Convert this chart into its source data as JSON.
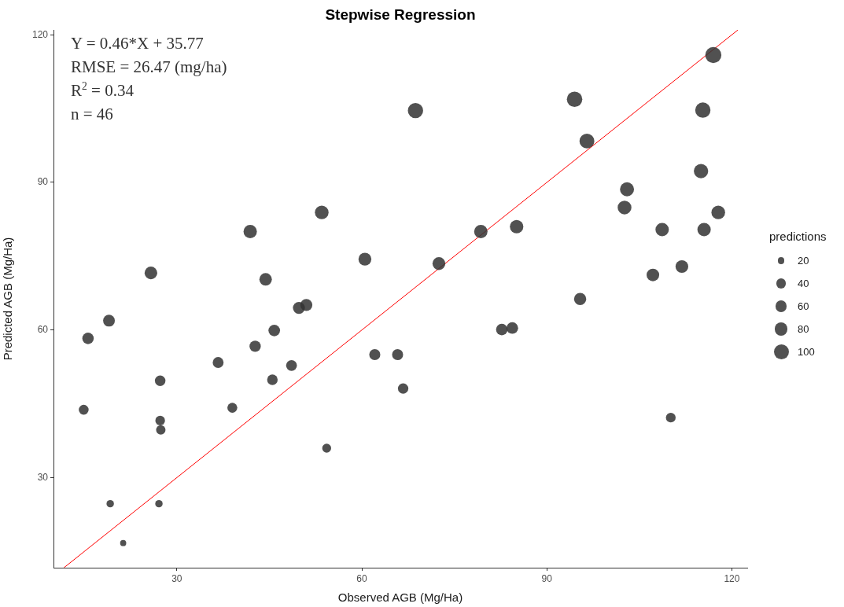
{
  "chart_data": {
    "type": "bubble",
    "title": "Stepwise Regression",
    "xlabel": "Observed AGB (Mg/Ha)",
    "ylabel": "Predicted AGB (Mg/Ha)",
    "legend_title": "predictions",
    "grid": false,
    "annotations": [
      "Y = 0.46*X + 35.77",
      "RMSE = 26.47 (mg/ha)",
      "R$^{2}$ = 0.34",
      "n = 46"
    ],
    "xlim": [
      10,
      122.5
    ],
    "ylim": [
      11.7,
      121
    ],
    "xticks": [
      30,
      60,
      90,
      120
    ],
    "yticks": [
      30,
      60,
      90,
      120
    ],
    "size_legend": [
      20,
      40,
      60,
      80,
      100
    ],
    "series": [
      {
        "color": "#333333",
        "x": [
          14.9,
          15.6,
          19.0,
          19.2,
          21.3,
          25.8,
          27.1,
          27.3,
          27.3,
          27.4,
          36.7,
          39.0,
          41.9,
          42.7,
          44.4,
          45.5,
          45.8,
          48.6,
          49.8,
          51.0,
          53.5,
          54.3,
          60.5,
          62.1,
          65.8,
          66.7,
          68.7,
          72.5,
          79.3,
          82.7,
          84.4,
          85.1,
          94.5,
          95.4,
          96.5,
          103.0,
          102.6,
          107.2,
          108.7,
          110.1,
          111.9,
          115.0,
          115.3,
          115.5,
          117.0,
          117.8
        ],
        "values": [
          43.8,
          58.3,
          61.9,
          24.7,
          16.7,
          71.6,
          24.7,
          49.7,
          41.6,
          39.7,
          53.4,
          44.2,
          80.0,
          56.7,
          70.3,
          49.9,
          59.9,
          52.8,
          64.5,
          65.1,
          83.9,
          36.0,
          74.4,
          55.0,
          55.0,
          48.1,
          104.6,
          73.5,
          80.0,
          60.1,
          60.4,
          81.0,
          106.9,
          66.3,
          98.4,
          88.6,
          84.9,
          71.2,
          80.4,
          42.2,
          72.9,
          92.3,
          104.7,
          80.4,
          115.9,
          83.9
        ],
        "sizes": [
          43.8,
          58.3,
          61.9,
          24.7,
          16.7,
          71.6,
          24.7,
          49.7,
          41.6,
          39.7,
          53.4,
          44.2,
          80.0,
          56.7,
          70.3,
          49.9,
          59.9,
          52.8,
          64.5,
          65.1,
          83.9,
          36.0,
          74.4,
          55.0,
          55.0,
          48.1,
          104.6,
          73.5,
          80.0,
          60.1,
          60.4,
          81.0,
          106.9,
          66.3,
          98.4,
          88.6,
          84.9,
          71.2,
          80.4,
          42.2,
          72.9,
          92.3,
          104.7,
          80.4,
          115.9,
          83.9
        ]
      },
      {
        "type": "line",
        "color": "#ff0000",
        "x": [
          11.7,
          121
        ],
        "values": [
          11.7,
          121
        ]
      }
    ]
  }
}
